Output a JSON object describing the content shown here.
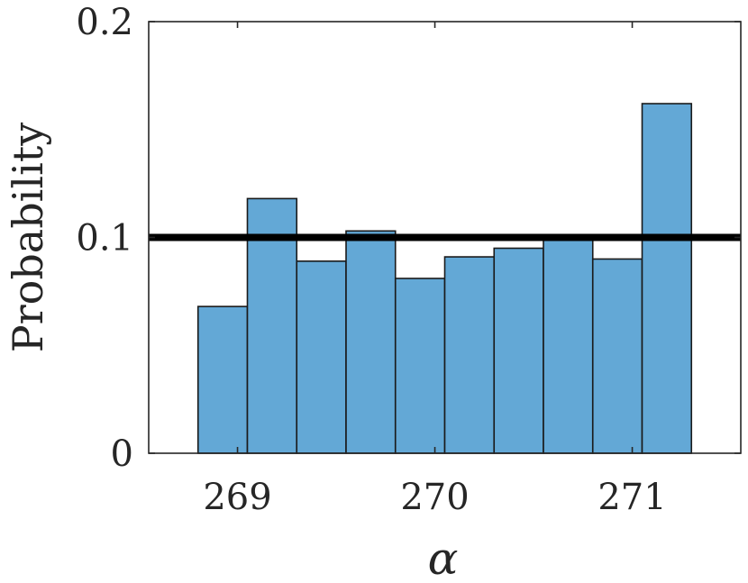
{
  "chart_data": {
    "type": "bar",
    "title": "",
    "xlabel": "α",
    "ylabel": "Probability",
    "xlim": [
      268.55,
      271.55
    ],
    "ylim": [
      0,
      0.2
    ],
    "x_ticks": [
      {
        "value": 269,
        "label": "269"
      },
      {
        "value": 270,
        "label": "270"
      },
      {
        "value": 271,
        "label": "271"
      }
    ],
    "y_ticks": [
      {
        "value": 0,
        "label": "0"
      },
      {
        "value": 0.1,
        "label": "0.1"
      },
      {
        "value": 0.2,
        "label": "0.2"
      }
    ],
    "bin_edges": [
      268.8,
      269.05,
      269.3,
      269.55,
      269.8,
      270.05,
      270.3,
      270.55,
      270.8,
      271.05,
      271.3
    ],
    "values": [
      0.068,
      0.118,
      0.089,
      0.103,
      0.081,
      0.091,
      0.095,
      0.099,
      0.09,
      0.162
    ],
    "reference_line": {
      "value": 0.1
    },
    "grid": false,
    "colors": {
      "bar_fill": "#63a8d6",
      "bar_edge": "#1a1a1a",
      "reference_line": "#000000",
      "axis": "#262626"
    }
  }
}
